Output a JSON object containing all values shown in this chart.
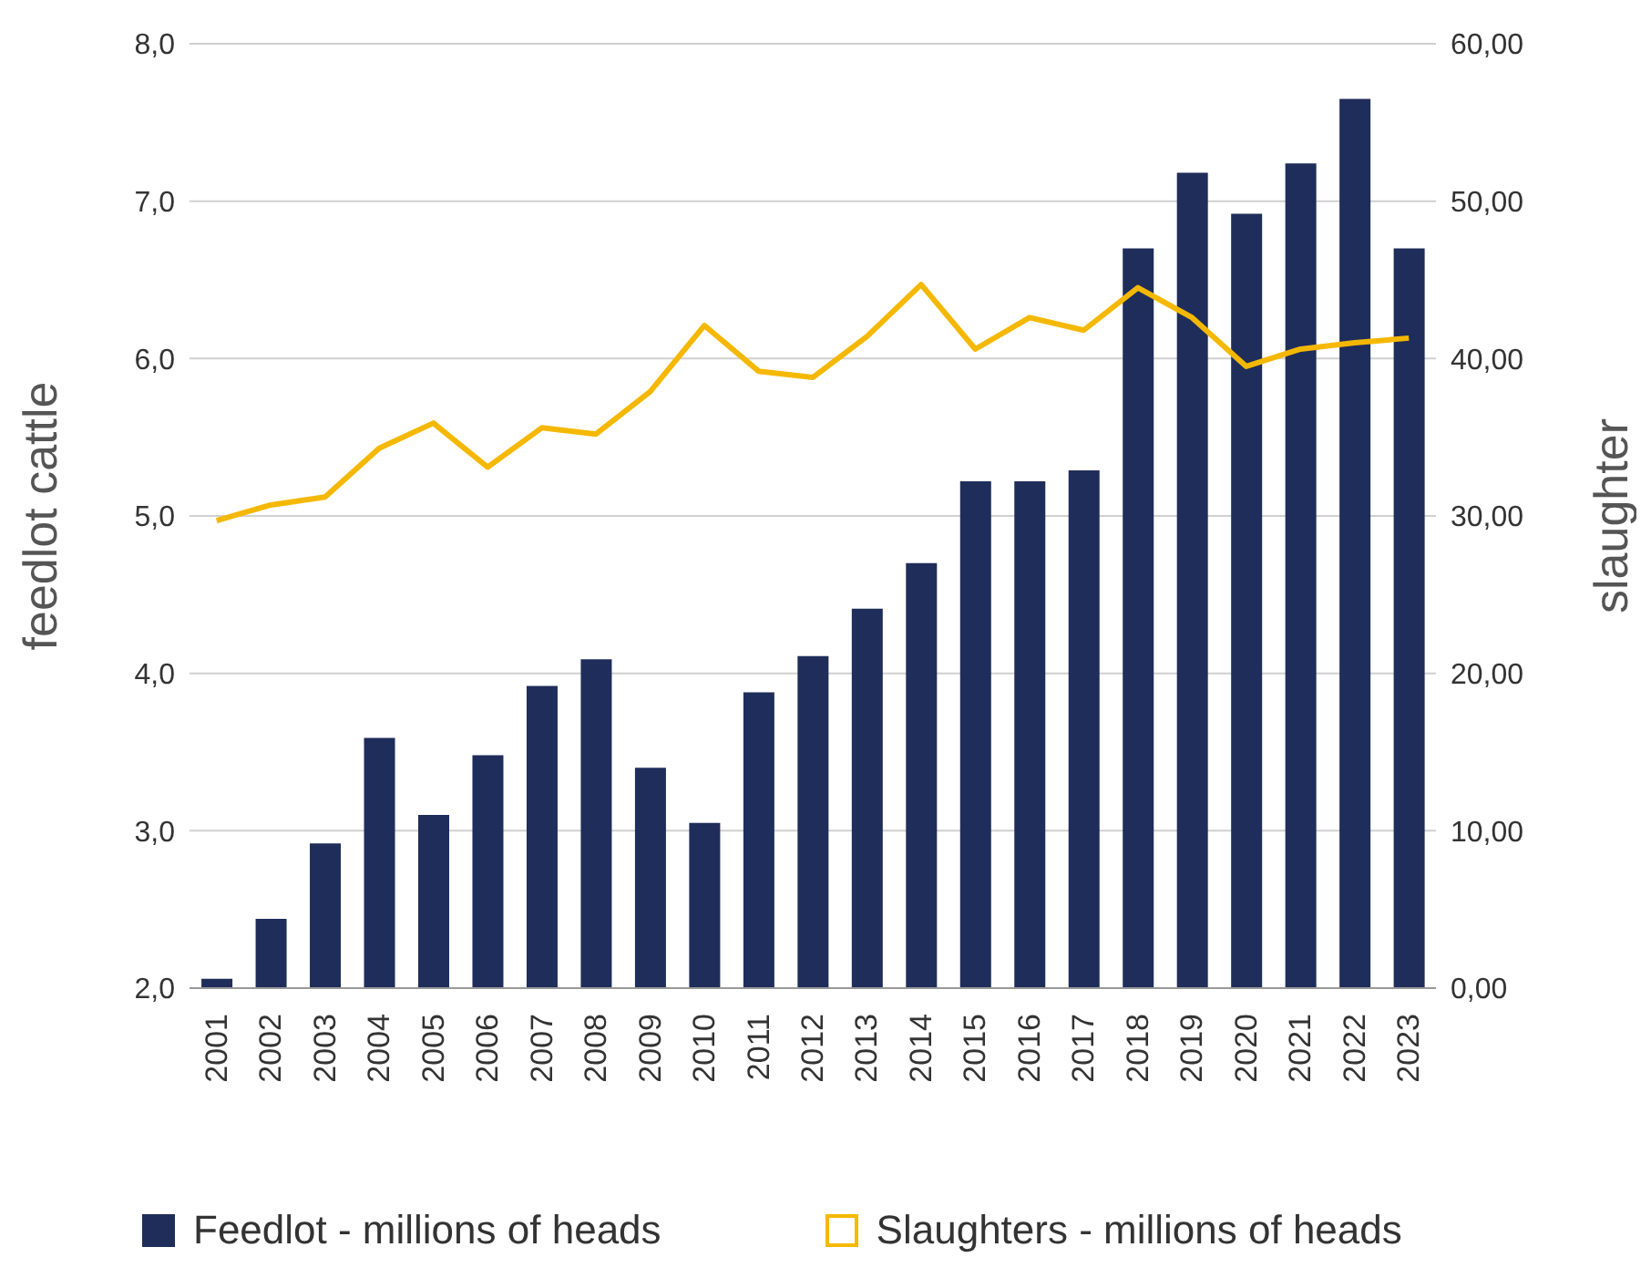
{
  "chart_data": {
    "type": "bar",
    "ylabel": "feedlot cattle",
    "y2label": "slaughter",
    "categories": [
      "2001",
      "2002",
      "2003",
      "2004",
      "2005",
      "2006",
      "2007",
      "2008",
      "2009",
      "2010",
      "2011",
      "2012",
      "2013",
      "2014",
      "2015",
      "2016",
      "2017",
      "2018",
      "2019",
      "2020",
      "2021",
      "2022",
      "2023"
    ],
    "series": [
      {
        "name": "Feedlot - millions of heads",
        "color": "#1f2d5a",
        "values": [
          2.06,
          2.44,
          2.92,
          3.59,
          3.1,
          3.48,
          3.92,
          4.09,
          3.4,
          3.05,
          3.88,
          4.11,
          4.41,
          4.7,
          5.22,
          5.22,
          5.29,
          6.7,
          7.18,
          6.92,
          7.24,
          7.65,
          6.7
        ]
      },
      {
        "name": "Slaughters - millions of heads",
        "type": "line",
        "axis": "y2",
        "color": "#f5b800",
        "marker": "none",
        "values": [
          29.7,
          30.7,
          31.2,
          34.3,
          35.9,
          33.1,
          35.6,
          35.2,
          37.9,
          42.1,
          39.2,
          38.8,
          41.4,
          44.7,
          40.6,
          42.6,
          41.8,
          44.5,
          42.6,
          39.5,
          40.6,
          41.0,
          41.3
        ]
      }
    ],
    "ylim": [
      2,
      8
    ],
    "yticks": [
      {
        "value": 2,
        "label": "2,0"
      },
      {
        "value": 3,
        "label": "3,0"
      },
      {
        "value": 4,
        "label": "4,0"
      },
      {
        "value": 5,
        "label": "5,0"
      },
      {
        "value": 6,
        "label": "6,0"
      },
      {
        "value": 7,
        "label": "7,0"
      },
      {
        "value": 8,
        "label": "8,0"
      }
    ],
    "y2lim": [
      0,
      60
    ],
    "y2ticks": [
      {
        "value": 0,
        "label": "0,00"
      },
      {
        "value": 10,
        "label": "10,00"
      },
      {
        "value": 20,
        "label": "20,00"
      },
      {
        "value": 30,
        "label": "30,00"
      },
      {
        "value": 40,
        "label": "40,00"
      },
      {
        "value": 50,
        "label": "50,00"
      },
      {
        "value": 60,
        "label": "60,00"
      }
    ],
    "grid": "y",
    "legend": "bottom"
  }
}
